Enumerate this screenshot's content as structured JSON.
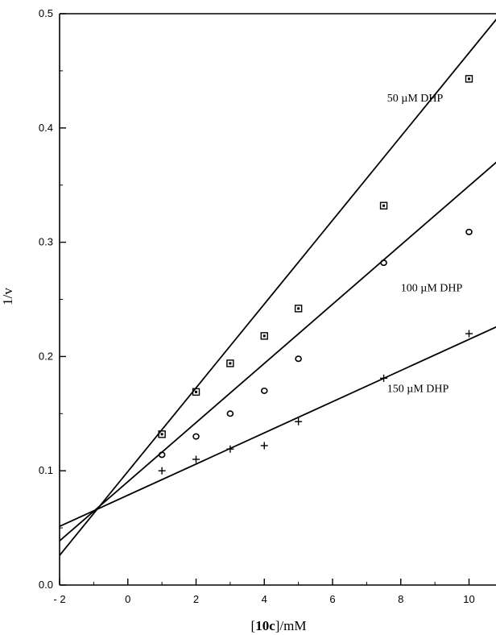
{
  "chart_data": {
    "type": "scatter",
    "title": "",
    "xlabel_prefix": "[",
    "xlabel_bold": "10c",
    "xlabel_suffix": "]/mM",
    "ylabel": "1/v",
    "xlim": [
      -2,
      11
    ],
    "ylim": [
      0,
      0.5
    ],
    "xticks": [
      -2,
      0,
      2,
      4,
      6,
      8,
      10
    ],
    "xtick_labels": [
      "- 2",
      "0",
      "2",
      "4",
      "6",
      "8",
      "10"
    ],
    "yticks": [
      0,
      0.1,
      0.2,
      0.3,
      0.4,
      0.5
    ],
    "ytick_labels": [
      "0.0",
      "0.1",
      "0.2",
      "0.3",
      "0.4",
      "0.5"
    ],
    "grid": false,
    "legend": "none",
    "series": [
      {
        "name": "50 µM DHP",
        "marker": "square",
        "x": [
          1,
          2,
          3,
          4,
          5,
          7.5,
          10
        ],
        "y": [
          0.132,
          0.169,
          0.194,
          0.218,
          0.242,
          0.332,
          0.443
        ],
        "fit": {
          "slope": 0.03665,
          "intercept": 0.0993
        },
        "label_at": {
          "x": 7.6,
          "y": 0.423
        }
      },
      {
        "name": "100 µM DHP",
        "marker": "circle",
        "x": [
          1,
          2,
          3,
          4,
          5,
          7.5,
          10
        ],
        "y": [
          0.114,
          0.13,
          0.15,
          0.17,
          0.198,
          0.282,
          0.309
        ],
        "fit": {
          "slope": 0.02589,
          "intercept": 0.0904
        },
        "label_at": {
          "x": 8.0,
          "y": 0.257
        }
      },
      {
        "name": "150 µM DHP",
        "marker": "plus",
        "x": [
          1,
          2,
          3,
          4,
          5,
          7.5,
          10
        ],
        "y": [
          0.1,
          0.11,
          0.119,
          0.122,
          0.143,
          0.181,
          0.22
        ],
        "fit": {
          "slope": 0.01364,
          "intercept": 0.0786
        },
        "label_at": {
          "x": 7.6,
          "y": 0.169
        }
      }
    ]
  }
}
